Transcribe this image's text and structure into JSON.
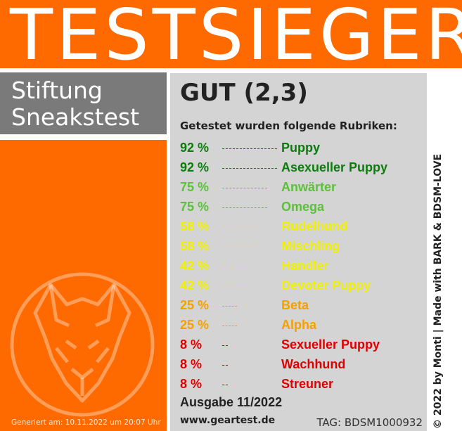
{
  "banner": {
    "title": "TESTSIEGER"
  },
  "brand": {
    "line1": "Stiftung",
    "line2": "Sneakstest"
  },
  "generated_text": "Generiert am: 10.11.2022 um 20:07 Uhr",
  "grade": "GUT (2,3)",
  "rubrics_heading": "Getestet wurden folgende Rubriken:",
  "ratings": [
    {
      "percent_text": "92 %",
      "percent": 92,
      "label": "Puppy",
      "color": "#0a7d0a"
    },
    {
      "percent_text": "92 %",
      "percent": 92,
      "label": "Asexueller Puppy",
      "color": "#0a7d0a"
    },
    {
      "percent_text": "75 %",
      "percent": 75,
      "label": "Anwärter",
      "color": "#5cc13a"
    },
    {
      "percent_text": "75 %",
      "percent": 75,
      "label": "Omega",
      "color": "#5cc13a"
    },
    {
      "percent_text": "58 %",
      "percent": 58,
      "label": "Rudelhund",
      "color": "#f2f200"
    },
    {
      "percent_text": "58 %",
      "percent": 58,
      "label": "Mischling",
      "color": "#f2f200"
    },
    {
      "percent_text": "42 %",
      "percent": 42,
      "label": "Handler",
      "color": "#f2f200"
    },
    {
      "percent_text": "42 %",
      "percent": 42,
      "label": "Devoter Puppy",
      "color": "#f2f200"
    },
    {
      "percent_text": "25 %",
      "percent": 25,
      "label": "Beta",
      "color": "#f5a000"
    },
    {
      "percent_text": "25 %",
      "percent": 25,
      "label": "Alpha",
      "color": "#f5a000"
    },
    {
      "percent_text": "8 %",
      "percent": 8,
      "label": "Sexueller Puppy",
      "color": "#e00000"
    },
    {
      "percent_text": "8 %",
      "percent": 8,
      "label": "Wachhund",
      "color": "#e00000"
    },
    {
      "percent_text": "8 %",
      "percent": 8,
      "label": "Streuner",
      "color": "#e00000"
    }
  ],
  "issue": "Ausgabe 11/2022",
  "website": "www.geartest.de",
  "tag": "TAG: BDSM1000932",
  "copyright": "© 2022 by Monti | Made with BARK & BDSM-LOVE",
  "colors": {
    "orange": "#ff6a00",
    "gray_box": "#7a7a7a",
    "panel": "#d4d4d4"
  },
  "icons": {
    "emblem": "dog-head-emblem-icon"
  }
}
